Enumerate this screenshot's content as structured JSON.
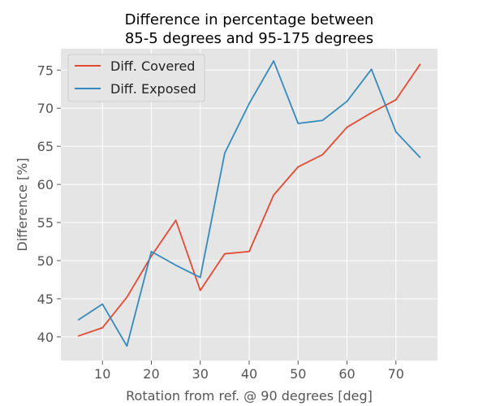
{
  "chart_data": {
    "type": "line",
    "title_lines": [
      "Difference in percentage between",
      "85-5 degrees and 95-175 degrees"
    ],
    "xlabel": "Rotation from ref. @ 90 degrees [deg]",
    "ylabel": "Difference [%]",
    "x": [
      5,
      10,
      15,
      20,
      25,
      30,
      35,
      40,
      45,
      50,
      55,
      60,
      65,
      70,
      75
    ],
    "xlim": [
      1.5,
      78.5
    ],
    "ylim": [
      36.9,
      77.8
    ],
    "xticks": [
      10,
      20,
      30,
      40,
      50,
      60,
      70
    ],
    "yticks": [
      40,
      45,
      50,
      55,
      60,
      65,
      70,
      75
    ],
    "grid": true,
    "legend_position": "top-left",
    "series": [
      {
        "name": "Diff. Covered",
        "color": "#E24A33",
        "values": [
          40.1,
          41.2,
          45.2,
          50.6,
          55.3,
          46.1,
          50.9,
          51.2,
          58.6,
          62.3,
          63.9,
          67.5,
          69.4,
          71.1,
          75.8
        ]
      },
      {
        "name": "Diff. Exposed",
        "color": "#348ABD",
        "values": [
          42.2,
          44.3,
          38.8,
          51.2,
          49.4,
          47.8,
          64.1,
          70.6,
          76.2,
          68.0,
          68.4,
          70.9,
          75.1,
          66.9,
          63.5
        ]
      }
    ]
  }
}
